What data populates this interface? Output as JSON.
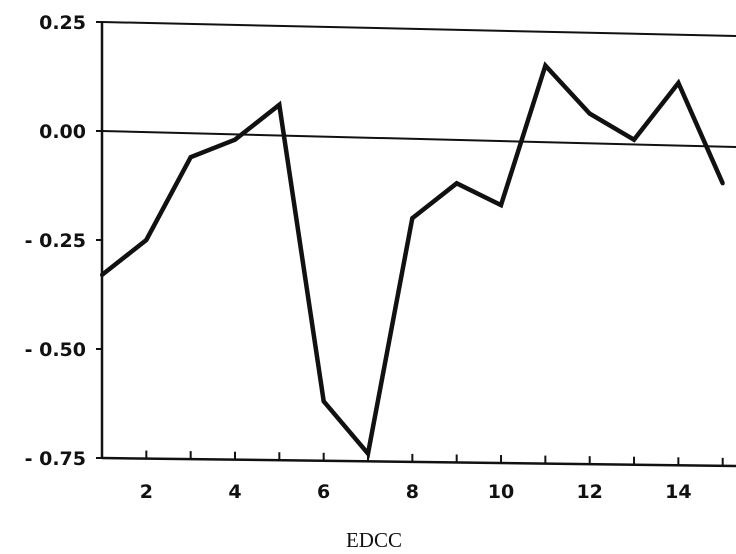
{
  "chart_data": {
    "type": "line",
    "title": "",
    "xlabel": "EDCC",
    "ylabel": "",
    "xlim": [
      1,
      15.3
    ],
    "ylim": [
      -0.75,
      0.25
    ],
    "x_ticks": [
      2,
      4,
      6,
      8,
      10,
      12,
      14
    ],
    "y_ticks": [
      0.25,
      0.0,
      -0.25,
      -0.5,
      -0.75
    ],
    "y_tick_labels": [
      "0.25",
      "0.00",
      "- 0.25",
      "- 0.50",
      "- 0.75"
    ],
    "zero_line": true,
    "grid": false,
    "series": [
      {
        "name": "",
        "x": [
          1,
          2,
          3,
          4,
          5,
          6,
          7,
          8,
          9,
          10,
          11,
          12,
          13,
          14,
          15
        ],
        "values": [
          -0.33,
          -0.25,
          -0.06,
          -0.02,
          0.06,
          -0.62,
          -0.74,
          -0.2,
          -0.12,
          -0.17,
          0.15,
          0.04,
          -0.02,
          0.11,
          -0.12
        ]
      }
    ]
  }
}
